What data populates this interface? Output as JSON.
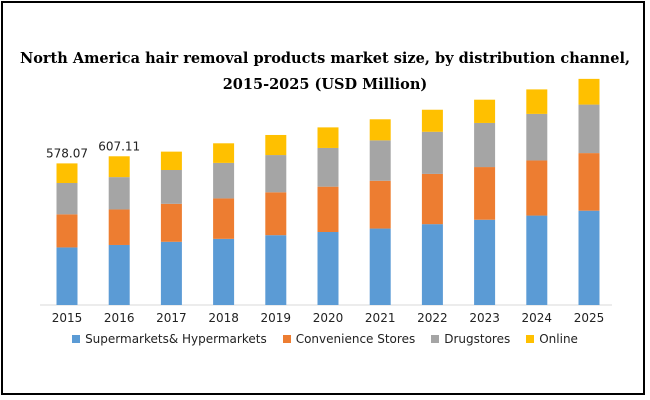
{
  "chart_data": {
    "type": "bar",
    "stacked": true,
    "title_lines": [
      "North America hair removal products market size, by distribution channel,",
      "2015-2025 (USD Million)"
    ],
    "categories": [
      "2015",
      "2016",
      "2017",
      "2018",
      "2019",
      "2020",
      "2021",
      "2022",
      "2023",
      "2024",
      "2025"
    ],
    "series": [
      {
        "name": "Supermarkets& Hypermarkets",
        "color": "#5b9bd5",
        "values": [
          235,
          245,
          258,
          270,
          285,
          298,
          312,
          330,
          348,
          365,
          385
        ]
      },
      {
        "name": "Convenience Stores",
        "color": "#ed7d31",
        "values": [
          135,
          145,
          155,
          165,
          175,
          185,
          195,
          205,
          215,
          225,
          235
        ]
      },
      {
        "name": "Drugstores",
        "color": "#a5a5a5",
        "values": [
          128,
          132,
          138,
          145,
          152,
          158,
          165,
          172,
          180,
          190,
          198
        ]
      },
      {
        "name": "Online",
        "color": "#ffc000",
        "values": [
          80,
          85,
          75,
          80,
          82,
          84,
          86,
          90,
          95,
          100,
          105
        ]
      }
    ],
    "data_labels": [
      {
        "category": "2015",
        "text": "578.07"
      },
      {
        "category": "2016",
        "text": "607.11"
      }
    ],
    "ylim": [
      0,
      1000
    ],
    "grid": false,
    "legend_position": "bottom"
  }
}
